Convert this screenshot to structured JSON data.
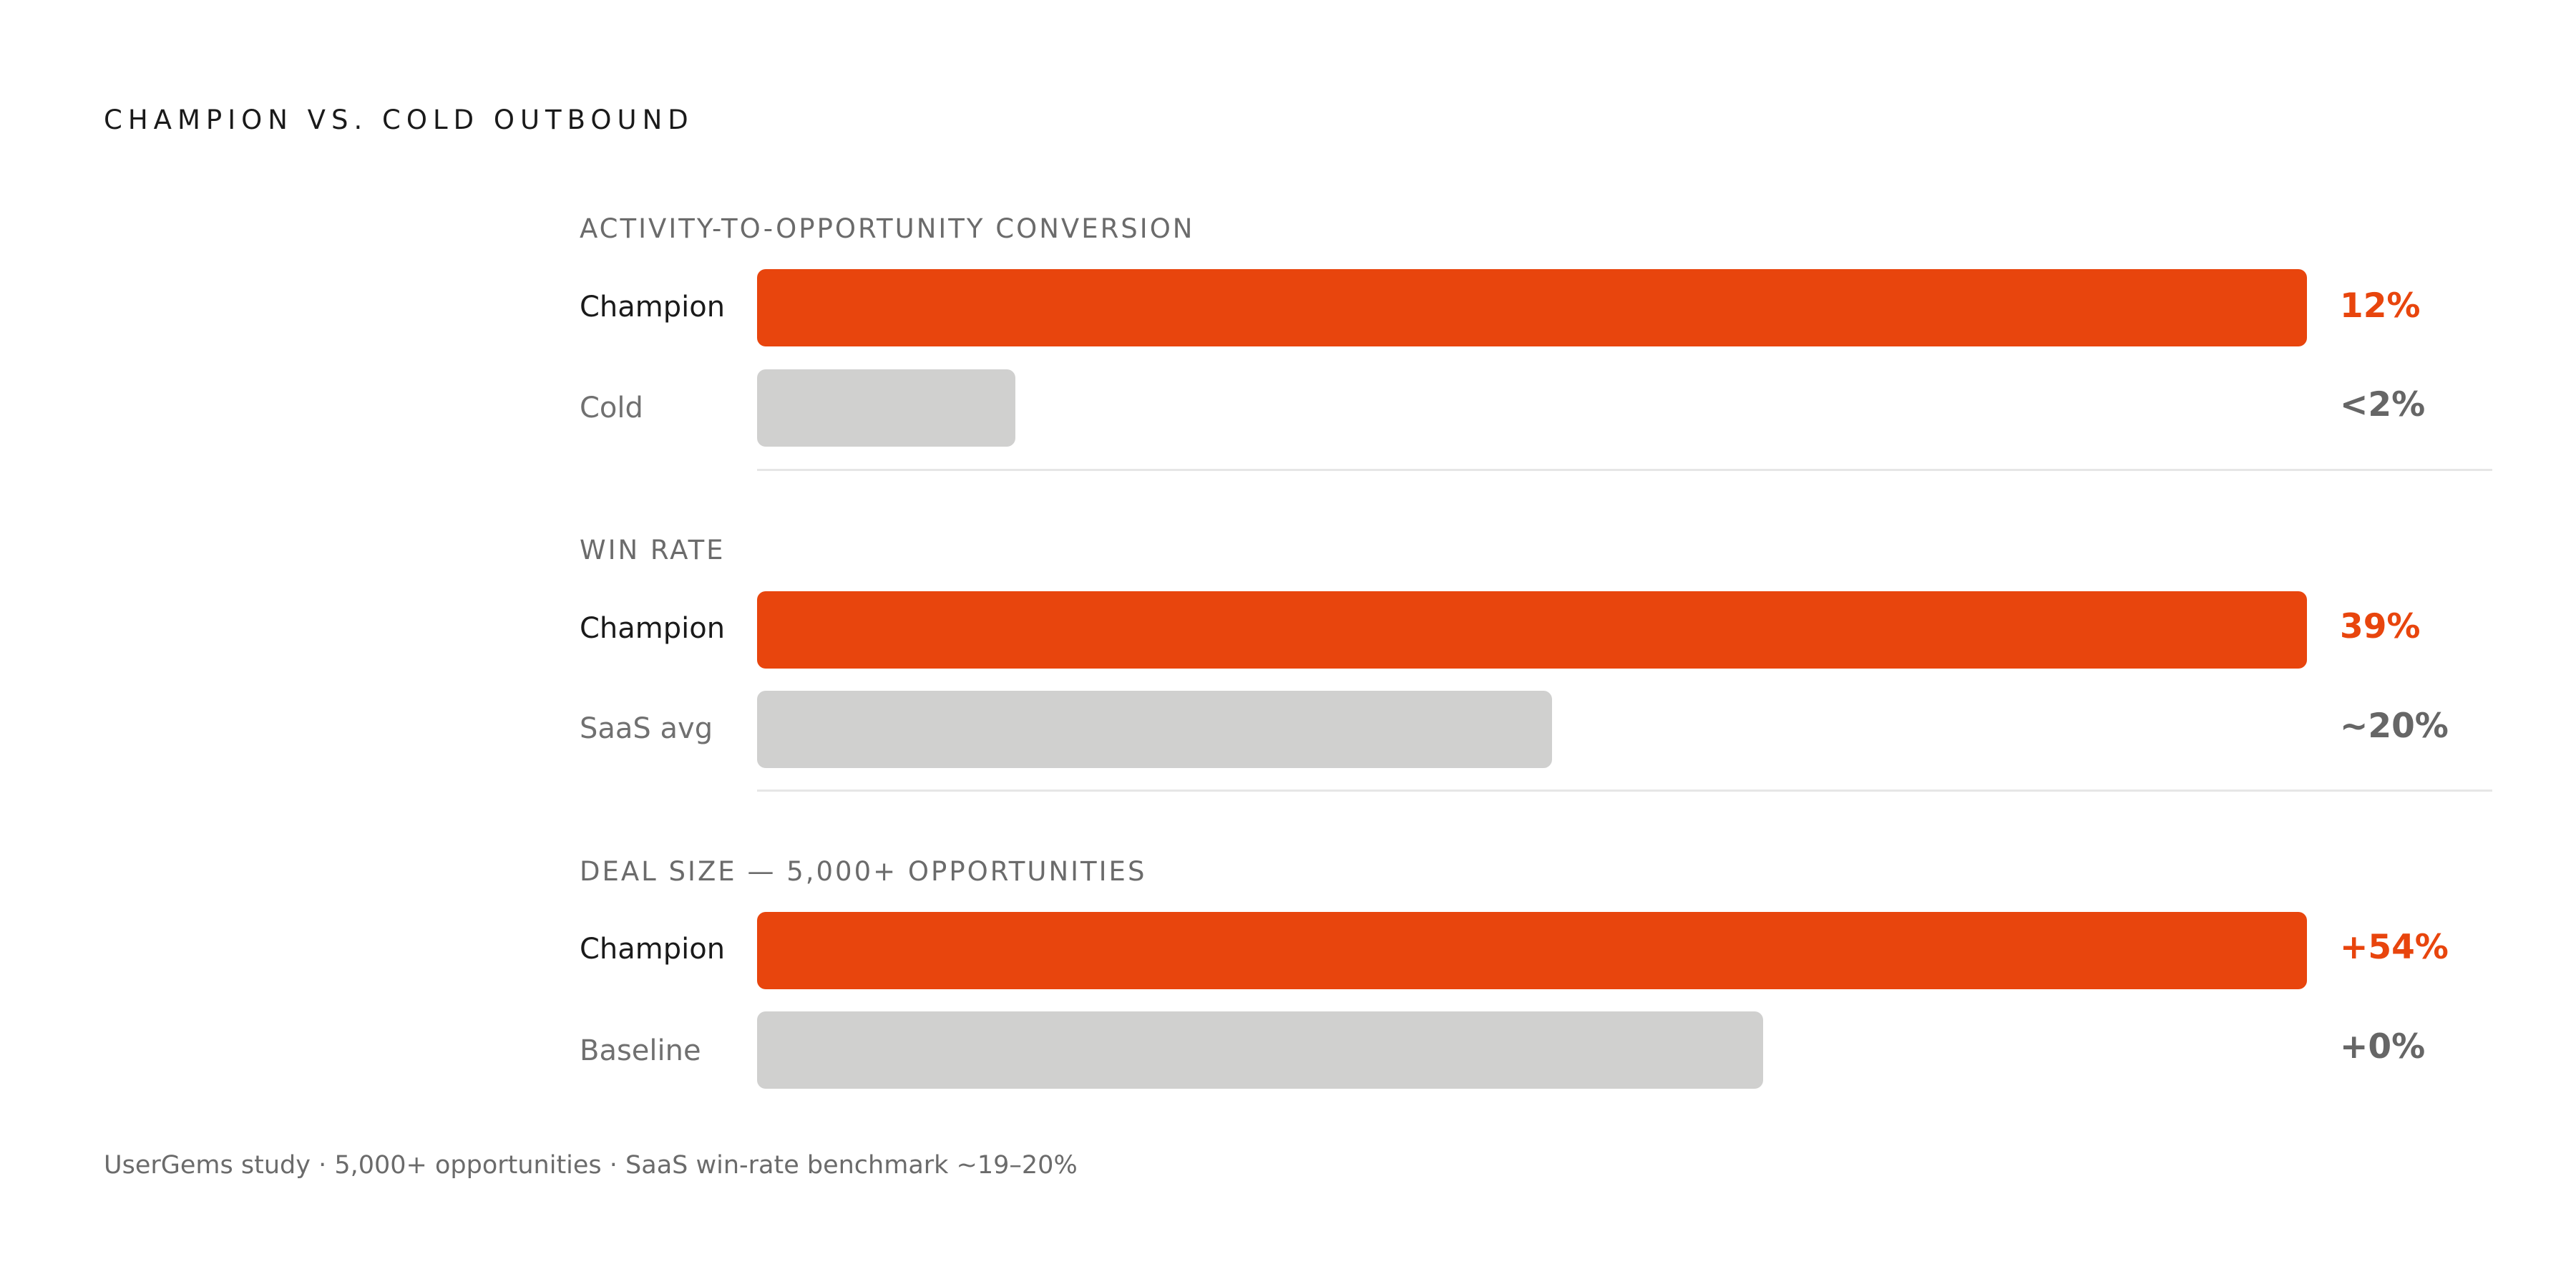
{
  "title": "CHAMPION VS. COLD OUTBOUND",
  "footnote": "UserGems study · 5,000+ opportunities · SaaS win-rate benchmark ~19–20%",
  "colors": {
    "champion": "#e8450d",
    "baseline": "#d0d0cf"
  },
  "chart_data": [
    {
      "type": "bar",
      "title": "ACTIVITY-TO-OPPORTUNITY CONVERSION",
      "categories": [
        "Champion",
        "Cold"
      ],
      "values": [
        12,
        2
      ],
      "value_labels": [
        "12%",
        "<2%"
      ]
    },
    {
      "type": "bar",
      "title": "WIN RATE",
      "categories": [
        "Champion",
        "SaaS avg"
      ],
      "values": [
        39,
        20
      ],
      "value_labels": [
        "39%",
        "~20%"
      ]
    },
    {
      "type": "bar",
      "title": "DEAL SIZE — 5,000+ OPPORTUNITIES",
      "categories": [
        "Champion",
        "Baseline"
      ],
      "values": [
        154,
        100
      ],
      "value_labels": [
        "+54%",
        "+0%"
      ]
    }
  ]
}
